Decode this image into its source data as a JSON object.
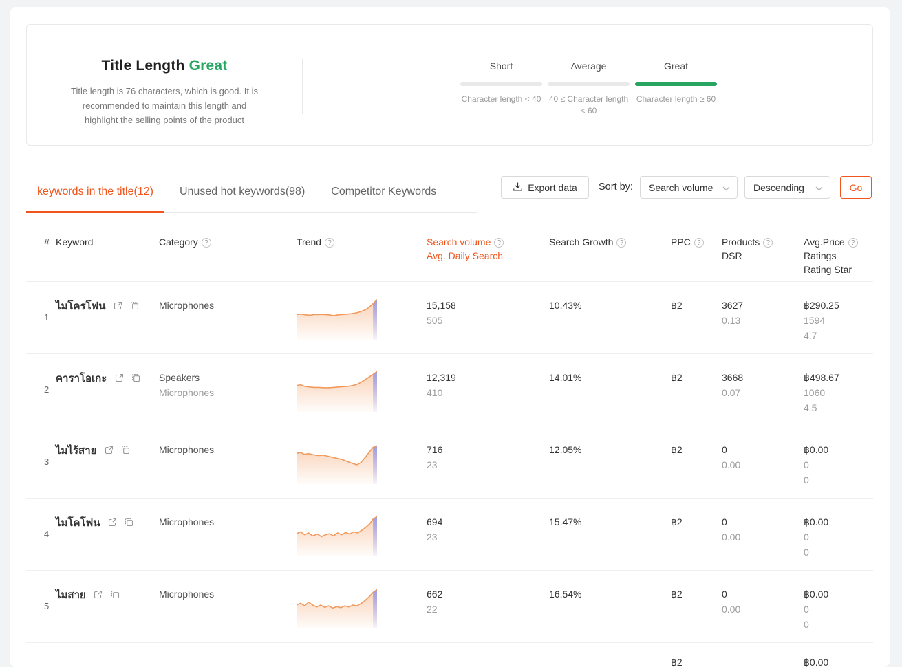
{
  "colors": {
    "accent": "#F0551D",
    "green": "#27A561",
    "spark_line": "#F2995C",
    "spark_tail_blue": "#8690EE"
  },
  "title_card": {
    "title": "Title Length",
    "status": "Great",
    "description": "Title length is 76 characters, which is good. It is recommended to maintain this length and highlight the selling points of the product",
    "levels": [
      {
        "label": "Short",
        "range": "Character length < 40",
        "active": false
      },
      {
        "label": "Average",
        "range": "40 ≤ Character length < 60",
        "active": false
      },
      {
        "label": "Great",
        "range": "Character length ≥ 60",
        "active": true
      }
    ]
  },
  "tabs": [
    {
      "label": "keywords in the title(12)",
      "active": true
    },
    {
      "label": "Unused hot keywords(98)",
      "active": false
    },
    {
      "label": "Competitor Keywords",
      "active": false
    }
  ],
  "toolbar": {
    "export_label": "Export data",
    "sort_by_label": "Sort by:",
    "sort_field": "Search volume",
    "sort_order": "Descending",
    "go_label": "Go"
  },
  "icons": {
    "help": "?"
  },
  "table": {
    "header": {
      "hash": "#",
      "keyword": "Keyword",
      "category": "Category",
      "trend": "Trend",
      "search_volume": "Search volume",
      "avg_daily_search": "Avg. Daily Search",
      "search_growth": "Search Growth",
      "ppc": "PPC",
      "products": "Products",
      "dsr": "DSR",
      "avg_price": "Avg.Price",
      "ratings": "Ratings",
      "rating_star": "Rating Star"
    },
    "rows": [
      {
        "num": "1",
        "keyword": "ไมโครโฟน",
        "category1": "Microphones",
        "category2": "",
        "search_volume": "15,158",
        "avg_daily": "505",
        "growth": "10.43%",
        "ppc": "฿2",
        "products": "3627",
        "dsr": "0.13",
        "price": "฿290.25",
        "ratings": "1594",
        "stars": "4.7",
        "spark": [
          [
            0,
            45
          ],
          [
            6,
            44
          ],
          [
            11,
            46
          ],
          [
            17,
            47
          ],
          [
            22,
            45
          ],
          [
            28,
            45
          ],
          [
            34,
            45
          ],
          [
            40,
            46
          ],
          [
            46,
            48
          ],
          [
            52,
            46
          ],
          [
            57,
            45
          ],
          [
            63,
            44
          ],
          [
            68,
            43
          ],
          [
            74,
            41
          ],
          [
            79,
            38
          ],
          [
            85,
            33
          ],
          [
            90,
            26
          ],
          [
            95,
            16
          ],
          [
            100,
            5
          ]
        ]
      },
      {
        "num": "2",
        "keyword": "คาราโอเกะ",
        "category1": "Speakers",
        "category2": "Microphones",
        "search_volume": "12,319",
        "avg_daily": "410",
        "growth": "14.01%",
        "ppc": "฿2",
        "products": "3668",
        "dsr": "0.07",
        "price": "฿498.67",
        "ratings": "1060",
        "stars": "4.5",
        "spark": [
          [
            0,
            42
          ],
          [
            5,
            40
          ],
          [
            10,
            44
          ],
          [
            16,
            46
          ],
          [
            22,
            47
          ],
          [
            28,
            47
          ],
          [
            34,
            48
          ],
          [
            40,
            48
          ],
          [
            46,
            47
          ],
          [
            52,
            46
          ],
          [
            58,
            45
          ],
          [
            64,
            44
          ],
          [
            70,
            42
          ],
          [
            76,
            38
          ],
          [
            82,
            31
          ],
          [
            88,
            22
          ],
          [
            95,
            12
          ],
          [
            100,
            4
          ]
        ]
      },
      {
        "num": "3",
        "keyword": "ไมไร้สาย",
        "category1": "Microphones",
        "category2": "",
        "search_volume": "716",
        "avg_daily": "23",
        "growth": "12.05%",
        "ppc": "฿2",
        "products": "0",
        "dsr": "0.00",
        "price": "฿0.00",
        "ratings": "0",
        "stars": "0",
        "spark": [
          [
            0,
            30
          ],
          [
            5,
            28
          ],
          [
            10,
            33
          ],
          [
            15,
            31
          ],
          [
            21,
            34
          ],
          [
            27,
            36
          ],
          [
            33,
            35
          ],
          [
            39,
            38
          ],
          [
            45,
            41
          ],
          [
            51,
            44
          ],
          [
            57,
            47
          ],
          [
            63,
            52
          ],
          [
            69,
            57
          ],
          [
            75,
            61
          ],
          [
            80,
            55
          ],
          [
            85,
            42
          ],
          [
            90,
            28
          ],
          [
            95,
            14
          ],
          [
            100,
            10
          ]
        ]
      },
      {
        "num": "4",
        "keyword": "ไมโคโฟน",
        "category1": "Microphones",
        "category2": "",
        "search_volume": "694",
        "avg_daily": "23",
        "growth": "15.47%",
        "ppc": "฿2",
        "products": "0",
        "dsr": "0.00",
        "price": "฿0.00",
        "ratings": "0",
        "stars": "0",
        "spark": [
          [
            0,
            52
          ],
          [
            5,
            47
          ],
          [
            10,
            55
          ],
          [
            15,
            50
          ],
          [
            20,
            58
          ],
          [
            26,
            53
          ],
          [
            31,
            60
          ],
          [
            36,
            55
          ],
          [
            41,
            52
          ],
          [
            46,
            58
          ],
          [
            51,
            50
          ],
          [
            56,
            55
          ],
          [
            61,
            49
          ],
          [
            66,
            53
          ],
          [
            71,
            47
          ],
          [
            76,
            50
          ],
          [
            81,
            43
          ],
          [
            86,
            35
          ],
          [
            91,
            25
          ],
          [
            95,
            13
          ],
          [
            100,
            6
          ]
        ]
      },
      {
        "num": "5",
        "keyword": "ไมสาย",
        "category1": "Microphones",
        "category2": "",
        "search_volume": "662",
        "avg_daily": "22",
        "growth": "16.54%",
        "ppc": "฿2",
        "products": "0",
        "dsr": "0.00",
        "price": "฿0.00",
        "ratings": "0",
        "stars": "0",
        "spark": [
          [
            0,
            50
          ],
          [
            5,
            45
          ],
          [
            10,
            52
          ],
          [
            15,
            42
          ],
          [
            20,
            50
          ],
          [
            25,
            55
          ],
          [
            30,
            50
          ],
          [
            35,
            56
          ],
          [
            40,
            52
          ],
          [
            45,
            58
          ],
          [
            50,
            54
          ],
          [
            55,
            57
          ],
          [
            60,
            52
          ],
          [
            65,
            55
          ],
          [
            70,
            50
          ],
          [
            75,
            52
          ],
          [
            80,
            46
          ],
          [
            85,
            38
          ],
          [
            90,
            28
          ],
          [
            95,
            16
          ],
          [
            100,
            8
          ]
        ]
      }
    ],
    "partial_row": {
      "ppc": "฿2",
      "price": "฿0.00"
    }
  }
}
